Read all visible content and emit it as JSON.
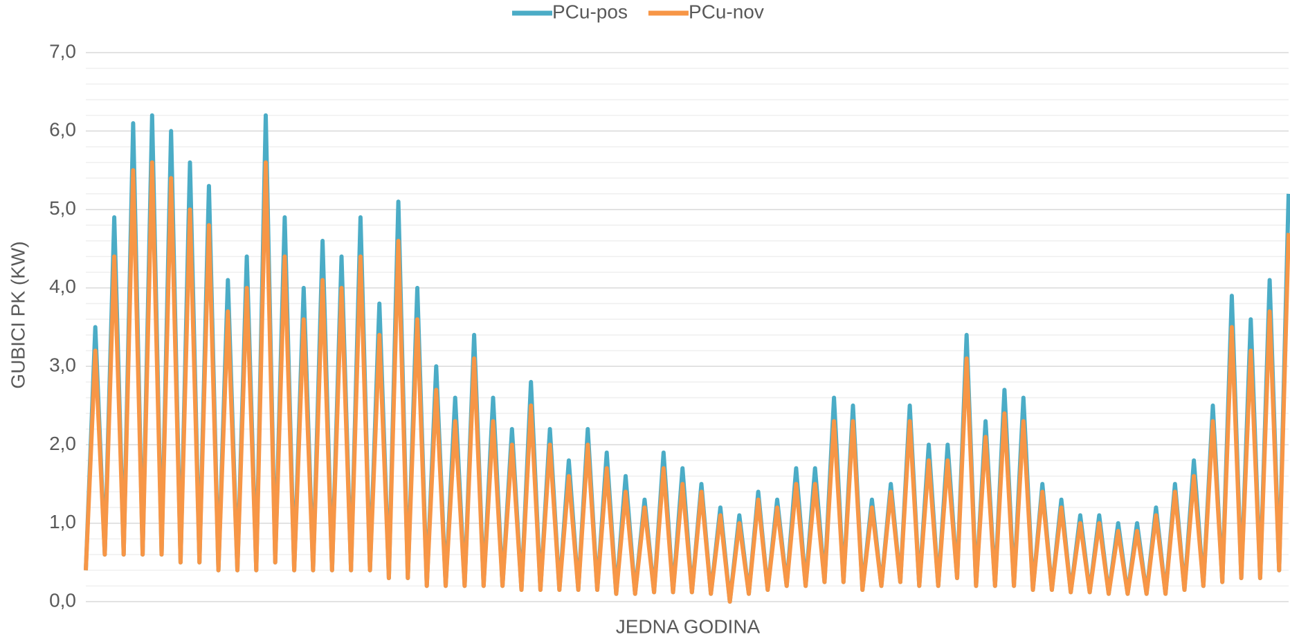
{
  "chart_data": {
    "type": "line",
    "y_label": "GUBICI PK (KW)",
    "x_label": "JEDNA GODINA",
    "series": [
      {
        "name": "PCu-pos",
        "color": "#4bacc6",
        "values": [
          0.4,
          3.5,
          0.6,
          4.9,
          0.6,
          6.1,
          0.6,
          6.2,
          0.6,
          6.0,
          0.5,
          5.6,
          0.5,
          5.3,
          0.4,
          4.1,
          0.4,
          4.4,
          0.4,
          6.2,
          0.5,
          4.9,
          0.4,
          4.0,
          0.4,
          4.6,
          0.4,
          4.4,
          0.4,
          4.9,
          0.4,
          3.8,
          0.3,
          5.1,
          0.3,
          4.0,
          0.2,
          3.0,
          0.2,
          2.6,
          0.2,
          3.4,
          0.2,
          2.6,
          0.2,
          2.2,
          0.15,
          2.8,
          0.15,
          2.2,
          0.15,
          1.8,
          0.15,
          2.2,
          0.15,
          1.9,
          0.1,
          1.6,
          0.1,
          1.3,
          0.12,
          1.9,
          0.12,
          1.7,
          0.12,
          1.5,
          0.1,
          1.2,
          0.0,
          1.1,
          0.1,
          1.4,
          0.15,
          1.3,
          0.2,
          1.7,
          0.2,
          1.7,
          0.25,
          2.6,
          0.25,
          2.5,
          0.15,
          1.3,
          0.2,
          1.5,
          0.25,
          2.5,
          0.2,
          2.0,
          0.2,
          2.0,
          0.3,
          3.4,
          0.2,
          2.3,
          0.2,
          2.7,
          0.2,
          2.6,
          0.15,
          1.5,
          0.15,
          1.3,
          0.12,
          1.1,
          0.12,
          1.1,
          0.1,
          1.0,
          0.1,
          1.0,
          0.1,
          1.2,
          0.1,
          1.5,
          0.15,
          1.8,
          0.2,
          2.5,
          0.25,
          3.9,
          0.3,
          3.6,
          0.3,
          4.1,
          0.4,
          5.2
        ]
      },
      {
        "name": "PCu-nov",
        "color": "#f79646",
        "values": [
          0.4,
          3.2,
          0.6,
          4.4,
          0.6,
          5.5,
          0.6,
          5.6,
          0.6,
          5.4,
          0.5,
          5.0,
          0.5,
          4.8,
          0.4,
          3.7,
          0.4,
          4.0,
          0.4,
          5.6,
          0.5,
          4.4,
          0.4,
          3.6,
          0.4,
          4.1,
          0.4,
          4.0,
          0.4,
          4.4,
          0.4,
          3.4,
          0.3,
          4.6,
          0.3,
          3.6,
          0.2,
          2.7,
          0.2,
          2.3,
          0.2,
          3.1,
          0.2,
          2.3,
          0.2,
          2.0,
          0.15,
          2.5,
          0.15,
          2.0,
          0.15,
          1.6,
          0.15,
          2.0,
          0.15,
          1.7,
          0.1,
          1.4,
          0.1,
          1.2,
          0.12,
          1.7,
          0.12,
          1.5,
          0.12,
          1.4,
          0.1,
          1.1,
          0.0,
          1.0,
          0.1,
          1.3,
          0.15,
          1.2,
          0.2,
          1.5,
          0.2,
          1.5,
          0.25,
          2.3,
          0.25,
          2.3,
          0.15,
          1.2,
          0.2,
          1.4,
          0.25,
          2.3,
          0.2,
          1.8,
          0.2,
          1.8,
          0.3,
          3.1,
          0.2,
          2.1,
          0.2,
          2.4,
          0.2,
          2.3,
          0.15,
          1.4,
          0.15,
          1.2,
          0.12,
          1.0,
          0.12,
          1.0,
          0.1,
          0.9,
          0.1,
          0.9,
          0.1,
          1.1,
          0.1,
          1.4,
          0.15,
          1.6,
          0.2,
          2.3,
          0.25,
          3.5,
          0.3,
          3.2,
          0.3,
          3.7,
          0.4,
          4.7
        ]
      }
    ],
    "ylim": [
      0,
      7
    ],
    "yticks": [
      {
        "value": 0,
        "label": "0,0"
      },
      {
        "value": 1,
        "label": "1,0"
      },
      {
        "value": 2,
        "label": "2,0"
      },
      {
        "value": 3,
        "label": "3,0"
      },
      {
        "value": 4,
        "label": "4,0"
      },
      {
        "value": 5,
        "label": "5,0"
      },
      {
        "value": 6,
        "label": "6,0"
      },
      {
        "value": 7,
        "label": "7,0"
      }
    ],
    "yticks_minor": [
      0.2,
      0.4,
      0.6,
      0.8,
      1.2,
      1.4,
      1.6,
      1.8,
      2.2,
      2.4,
      2.6,
      2.8,
      3.2,
      3.4,
      3.6,
      3.8,
      4.2,
      4.4,
      4.6,
      4.8,
      5.2,
      5.4,
      5.6,
      5.8,
      6.2,
      6.4,
      6.6,
      6.8
    ],
    "grid": true,
    "legend": "top"
  }
}
